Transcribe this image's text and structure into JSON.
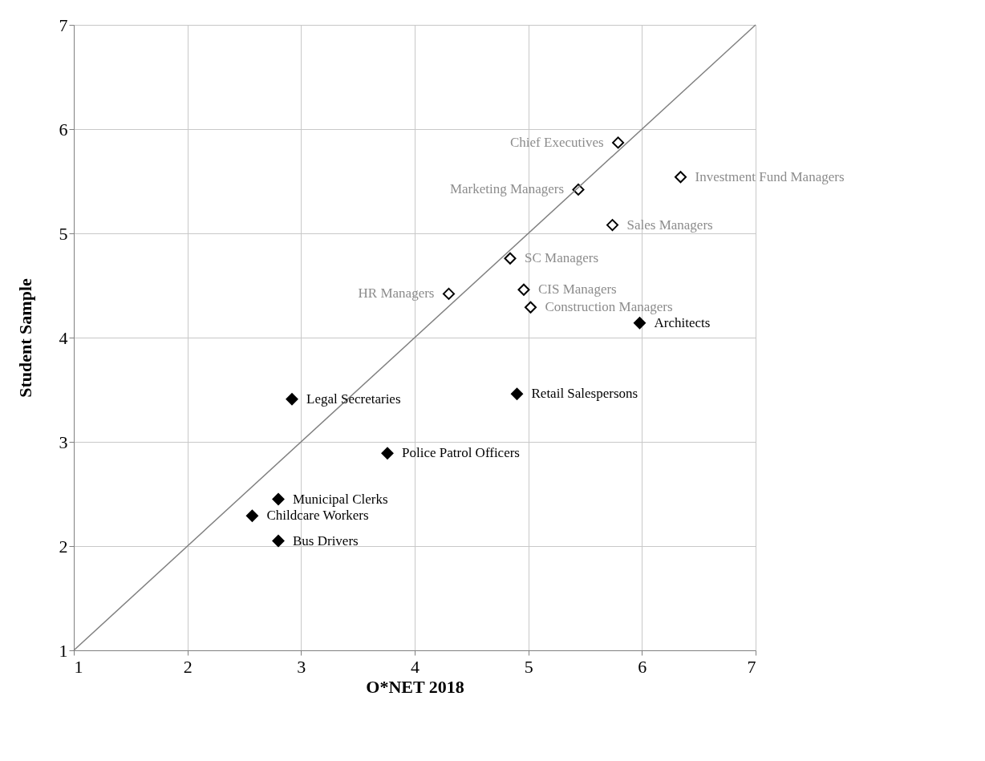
{
  "chart_data": {
    "type": "scatter",
    "xlabel": "O*NET 2018",
    "ylabel": "Student Sample",
    "xlim": [
      1,
      7
    ],
    "ylim": [
      1,
      7
    ],
    "xticks": [
      1,
      2,
      3,
      4,
      5,
      6,
      7
    ],
    "yticks": [
      1,
      2,
      3,
      4,
      5,
      6,
      7
    ],
    "grid": true,
    "marker": "diamond",
    "series": [
      {
        "color": "#000000",
        "x": [
          5.79,
          6.34,
          5.44,
          5.74,
          4.84,
          4.3,
          4.96,
          5.02
        ],
        "values": [
          5.87,
          5.54,
          5.42,
          5.08,
          4.76,
          4.42,
          4.46,
          4.29
        ]
      },
      {
        "color": "#000000",
        "x": [
          5.98,
          4.9,
          2.92,
          3.76,
          2.8,
          2.57,
          2.8
        ],
        "values": [
          4.14,
          3.46,
          3.41,
          2.89,
          2.45,
          2.29,
          2.05
        ]
      },
      {
        "type": "line",
        "color": "#808080",
        "marker": "none",
        "x": [
          1,
          7
        ],
        "values": [
          1,
          7
        ]
      }
    ],
    "annotations": [
      {
        "text": "Chief Executives",
        "x": 5.79,
        "y": 5.87
      },
      {
        "text": "Investment Fund Managers",
        "x": 6.34,
        "y": 5.54
      },
      {
        "text": "Marketing Managers",
        "x": 5.44,
        "y": 5.42
      },
      {
        "text": "Sales Managers",
        "x": 5.74,
        "y": 5.08
      },
      {
        "text": "SC Managers",
        "x": 4.84,
        "y": 4.76
      },
      {
        "text": "HR Managers",
        "x": 4.3,
        "y": 4.42
      },
      {
        "text": "CIS Managers",
        "x": 4.96,
        "y": 4.46
      },
      {
        "text": "Construction Managers",
        "x": 5.02,
        "y": 4.29
      },
      {
        "text": "Architects",
        "x": 5.98,
        "y": 4.14
      },
      {
        "text": "Retail Salespersons",
        "x": 4.9,
        "y": 3.46
      },
      {
        "text": "Legal Secretaries",
        "x": 2.92,
        "y": 3.41
      },
      {
        "text": "Police Patrol Officers",
        "x": 3.76,
        "y": 2.89
      },
      {
        "text": "Municipal Clerks",
        "x": 2.8,
        "y": 2.45
      },
      {
        "text": "Childcare Workers",
        "x": 2.57,
        "y": 2.29
      },
      {
        "text": "Bus Drivers",
        "x": 2.8,
        "y": 2.05
      }
    ]
  }
}
